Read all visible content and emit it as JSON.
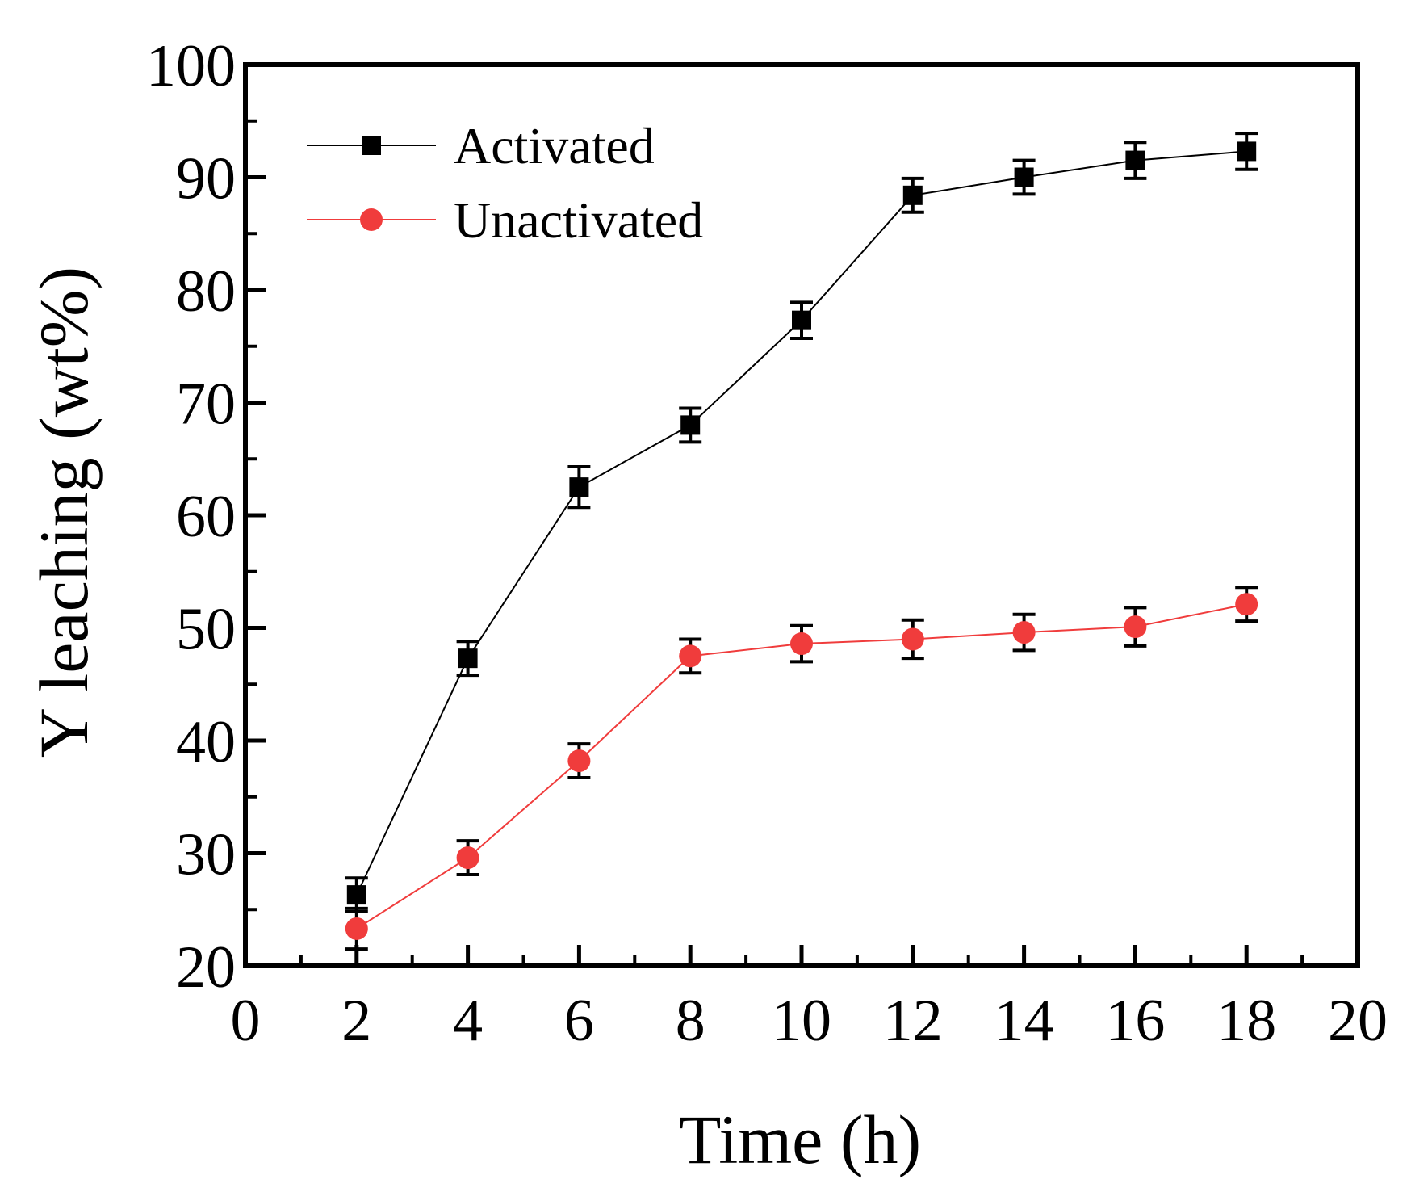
{
  "chart_data": {
    "type": "line",
    "title": "",
    "xlabel": "Time (h)",
    "ylabel": "Y leaching (wt%)",
    "xlim": [
      0,
      20
    ],
    "ylim": [
      20,
      100
    ],
    "x_ticks": [
      "0",
      "2",
      "4",
      "6",
      "8",
      "10",
      "12",
      "14",
      "16",
      "18",
      "20"
    ],
    "y_ticks": [
      "20",
      "30",
      "40",
      "50",
      "60",
      "70",
      "80",
      "90",
      "100"
    ],
    "legend_position": "top-left",
    "series": [
      {
        "name": "Activated",
        "color": "#000000",
        "marker": "square",
        "x": [
          2,
          4,
          6,
          8,
          10,
          12,
          14,
          16,
          18
        ],
        "y": [
          26.3,
          47.3,
          62.5,
          68.0,
          77.3,
          88.4,
          90.0,
          91.5,
          92.3
        ],
        "err": [
          1.5,
          1.5,
          1.8,
          1.5,
          1.6,
          1.5,
          1.5,
          1.6,
          1.6
        ]
      },
      {
        "name": "Unactivated",
        "color": "#f03c3c",
        "marker": "circle",
        "x": [
          2,
          4,
          6,
          8,
          10,
          12,
          14,
          16,
          18
        ],
        "y": [
          23.3,
          29.6,
          38.2,
          47.5,
          48.6,
          49.0,
          49.6,
          50.1,
          52.1
        ],
        "err": [
          1.8,
          1.5,
          1.5,
          1.5,
          1.6,
          1.7,
          1.6,
          1.7,
          1.5
        ]
      }
    ]
  }
}
